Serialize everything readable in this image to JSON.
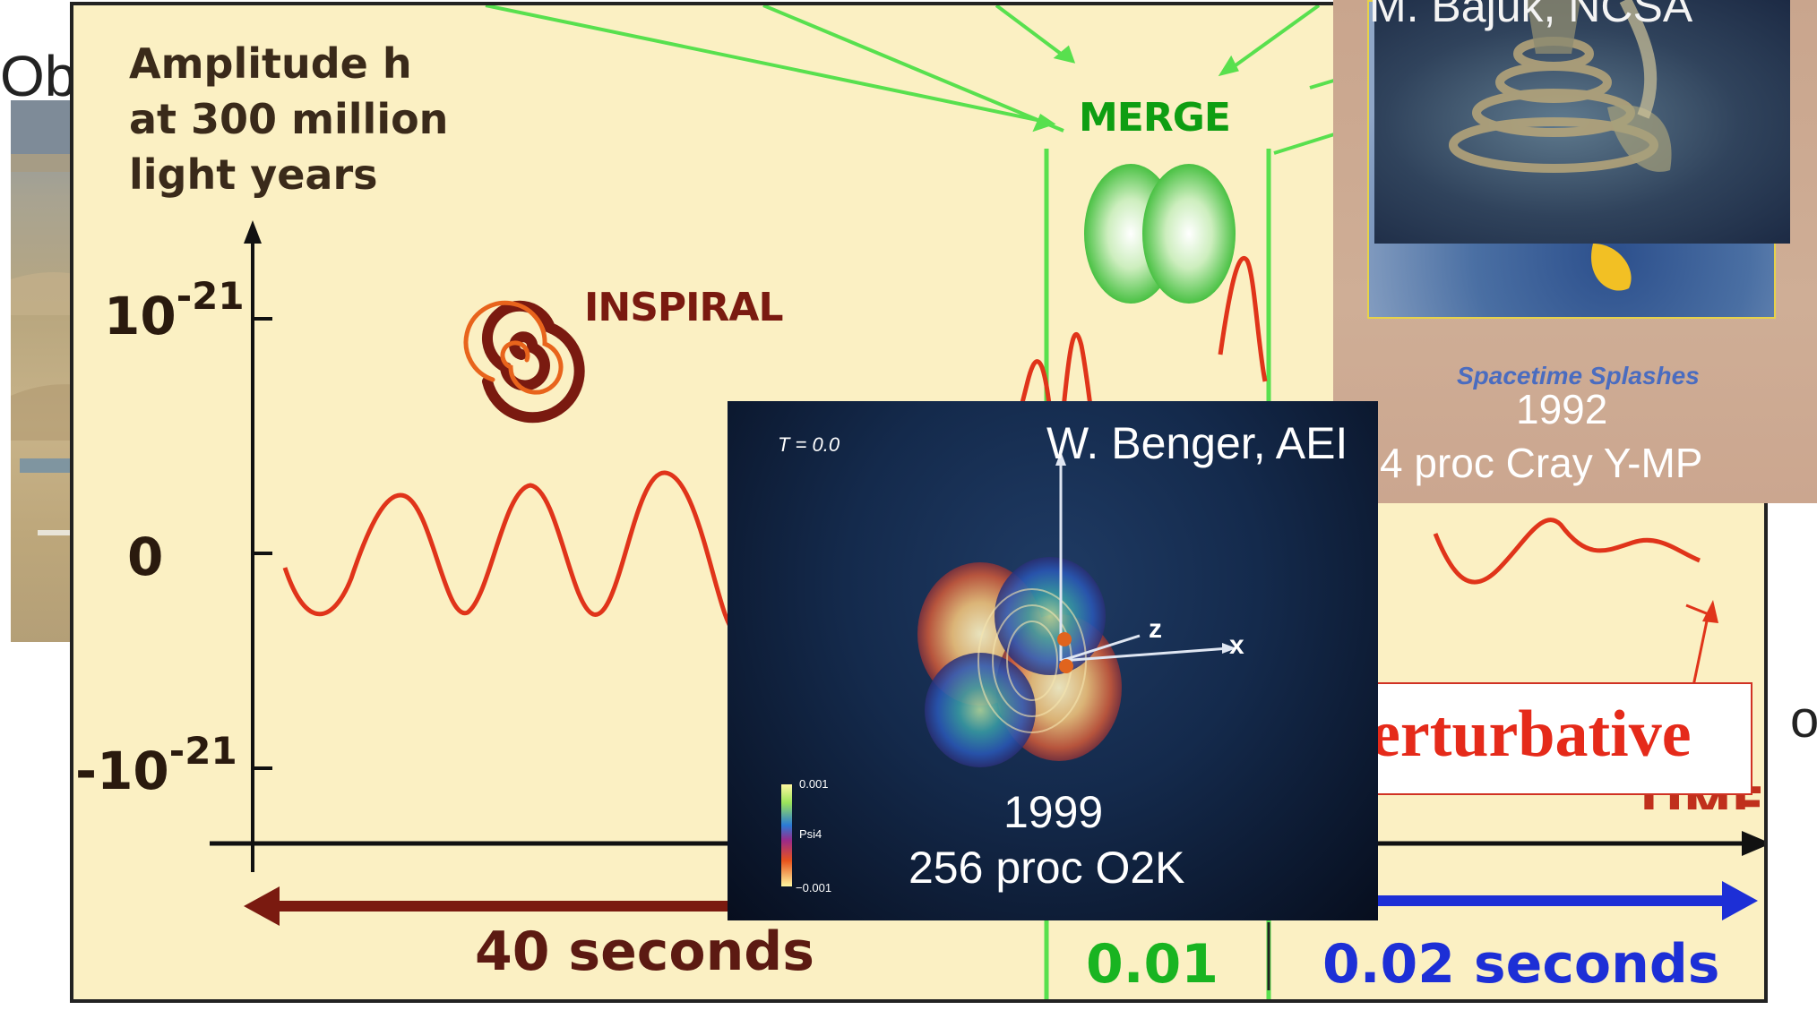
{
  "slide": {
    "left_text": "Ob",
    "right_text": "o"
  },
  "plot": {
    "amplitude_label_lines": [
      "Amplitude h",
      "at 300 million",
      "light years"
    ],
    "y_ticks": {
      "top_base": "10",
      "top_exp": "-21",
      "zero": "0",
      "bottom_base": "-10",
      "bottom_exp": "-21"
    },
    "inspiral_label": "INSPIRAL",
    "merge_label": "MERGE",
    "time_label_partial": "TIME",
    "durations": {
      "inspiral": "40 seconds",
      "merge": "0.01",
      "ringdown": "0.02 seconds"
    },
    "colors": {
      "background": "#fbf0c3",
      "wave": "#e0341a",
      "inspiral_arrow": "#7a1a10",
      "merge_lines": "#58e04e",
      "ringdown_arrow": "#1d2fd6"
    }
  },
  "perturbative": {
    "text": "erturbative"
  },
  "cray_panel": {
    "credit": "M. Bajuk, NCSA",
    "book_title": "Spacetime Splashes",
    "year": "1992",
    "machine": "4 proc Cray Y-MP"
  },
  "benger_panel": {
    "time": "T = 0.0",
    "credit": "W. Benger, AEI",
    "year": "1999",
    "machine": "256 proc O2K",
    "colorbar": {
      "max": "0.001",
      "label": "Psi4",
      "min": "−0.001"
    },
    "axes": {
      "z": "z",
      "x": "x"
    }
  }
}
